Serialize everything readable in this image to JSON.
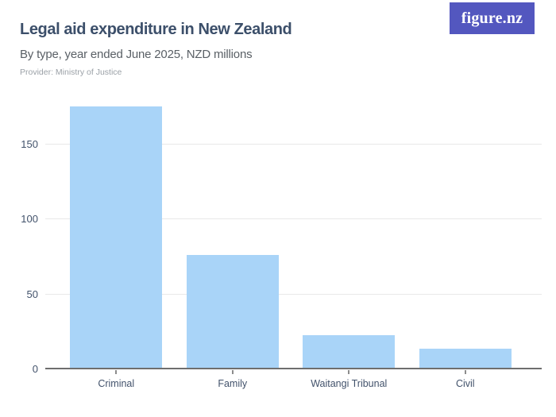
{
  "header": {
    "title": "Legal aid expenditure in New Zealand",
    "subtitle": "By type, year ended June 2025, NZD millions",
    "provider": "Provider: Ministry of Justice",
    "logo_text": "figure.nz"
  },
  "colors": {
    "title": "#3C4F6A",
    "subtitle": "#5A6066",
    "provider": "#9BA1A7",
    "logo_background": "#5357BF",
    "bar": "#A9D4F8",
    "gridline": "#E8E8E8",
    "axis_line": "#6E6E6E",
    "axis_label": "#42526B",
    "tick": "#8C8C8C"
  },
  "chart_data": {
    "type": "bar",
    "title": "Legal aid expenditure in New Zealand",
    "subtitle": "By type, year ended June 2025, NZD millions",
    "source": "Provider: Ministry of Justice",
    "categories": [
      "Criminal",
      "Family",
      "Waitangi Tribunal",
      "Civil"
    ],
    "values": [
      175,
      76,
      23,
      14
    ],
    "units": "NZD millions",
    "xlabel": "",
    "ylabel": "",
    "ylim": [
      0,
      180
    ],
    "yticks": [
      0,
      50,
      100,
      150
    ],
    "grid": true,
    "legend": false
  }
}
